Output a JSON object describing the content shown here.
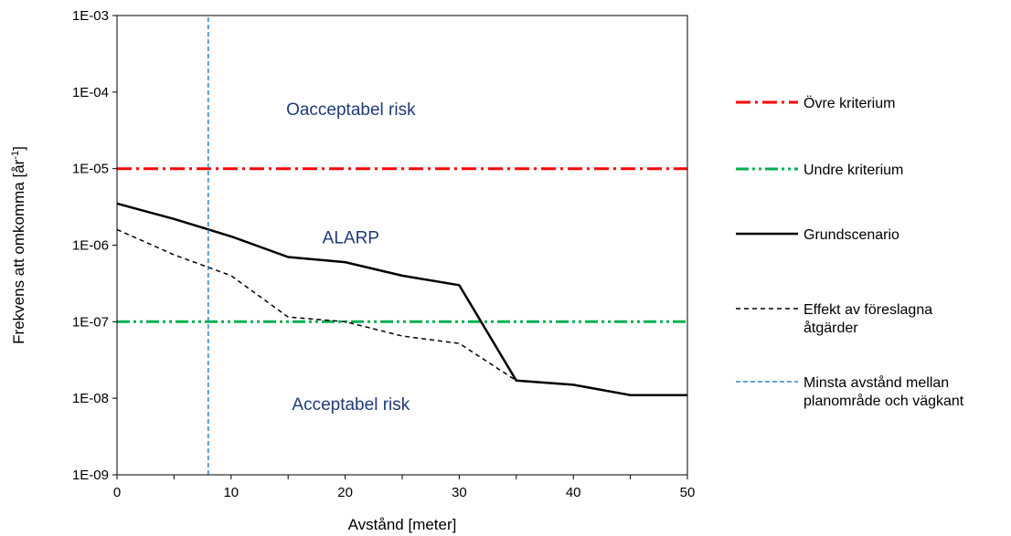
{
  "chart_data": {
    "type": "line",
    "xlabel": "Avstånd [meter]",
    "ylabel_main": "Frekvens att omkomma  [år",
    "ylabel_sup": "-1",
    "ylabel_end": "]",
    "xlim": [
      0,
      50
    ],
    "ylim": [
      1e-09,
      0.001
    ],
    "yscale": "log",
    "x_ticks": [
      "0",
      "10",
      "20",
      "30",
      "40",
      "50"
    ],
    "y_ticks": [
      "1E-03",
      "1E-04",
      "1E-05",
      "1E-06",
      "1E-07",
      "1E-08",
      "1E-09"
    ],
    "region_color": "#1f3b7a",
    "region_labels": [
      {
        "text": "Oacceptabel risk",
        "x": 20.5,
        "y": 5e-05
      },
      {
        "text": "ALARP",
        "x": 20.5,
        "y": 1.05e-06
      },
      {
        "text": "Acceptabel risk",
        "x": 20.5,
        "y": 7e-09
      }
    ],
    "series": [
      {
        "name": "Övre kriterium",
        "color": "#ff0000",
        "style": "dashdot",
        "width": 3,
        "x": [
          0,
          50
        ],
        "y": [
          1e-05,
          1e-05
        ]
      },
      {
        "name": "Undre kriterium",
        "color": "#00b050",
        "style": "dashdotdot",
        "width": 3,
        "x": [
          0,
          50
        ],
        "y": [
          1e-07,
          1e-07
        ]
      },
      {
        "name": "Grundscenario",
        "color": "#000000",
        "style": "solid",
        "width": 2.5,
        "x": [
          0,
          5,
          10,
          15,
          20,
          25,
          30,
          35,
          40,
          45,
          50
        ],
        "y": [
          3.5e-06,
          2.2e-06,
          1.3e-06,
          7e-07,
          6e-07,
          4e-07,
          3e-07,
          1.7e-08,
          1.5e-08,
          1.1e-08,
          1.1e-08
        ]
      },
      {
        "name": "Effekt av föreslagna åtgärder",
        "name_lines": [
          "Effekt av föreslagna",
          "åtgärder"
        ],
        "color": "#000000",
        "style": "dashed",
        "width": 1.5,
        "x": [
          0,
          5,
          10,
          15,
          20,
          25,
          30,
          35
        ],
        "y": [
          1.6e-06,
          7.5e-07,
          4e-07,
          1.15e-07,
          1e-07,
          6.5e-08,
          5.2e-08,
          1.7e-08
        ]
      },
      {
        "name": "Minsta avstånd mellan planområde och vägkant",
        "name_lines": [
          "Minsta avstånd mellan",
          "planområde och vägkant"
        ],
        "color": "#2e86c1",
        "style": "dashed_short",
        "width": 1.5,
        "x": [
          8,
          8
        ],
        "y": [
          1e-09,
          0.001
        ]
      }
    ],
    "legend_position": "right",
    "grid": false
  }
}
